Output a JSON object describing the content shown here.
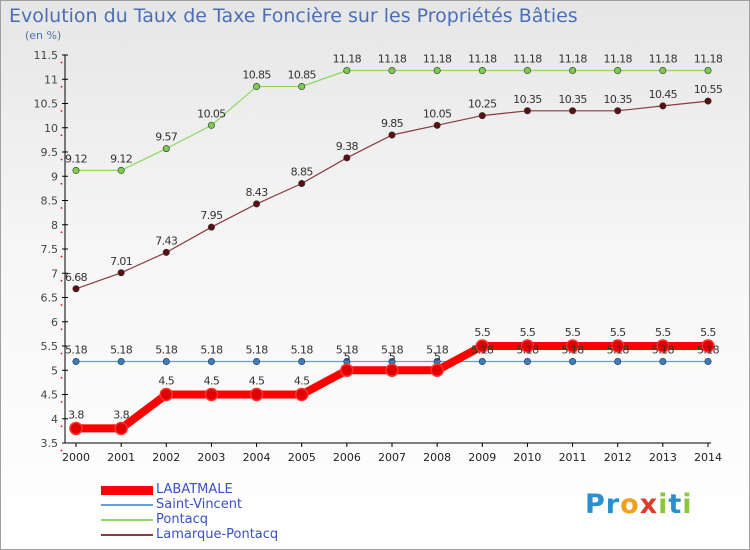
{
  "title": "Evolution du Taux de Taxe Foncière sur les Propriétés Bâties",
  "subtitle": "(en %)",
  "logo": {
    "text": "Proxiti",
    "letters": [
      "P",
      "r",
      "o",
      "x",
      "i",
      "t",
      "i"
    ],
    "colors": [
      "#2a8fd0",
      "#2a8fd0",
      "#f0a020",
      "#e03a2a",
      "#8cc63f",
      "#2a8fd0",
      "#8cc63f"
    ]
  },
  "chart_data": {
    "type": "line",
    "title": "Evolution du Taux de Taxe Foncière sur les Propriétés Bâties",
    "ylabel": "(en %)",
    "xlabel": "",
    "x": [
      "2000",
      "2001",
      "2002",
      "2003",
      "2004",
      "2005",
      "2006",
      "2007",
      "2008",
      "2009",
      "2010",
      "2011",
      "2012",
      "2013",
      "2014"
    ],
    "ylim": [
      3.5,
      11.5
    ],
    "yticks": [
      3.5,
      4,
      4.5,
      5,
      5.5,
      6,
      6.5,
      7,
      7.5,
      8,
      8.5,
      9,
      9.5,
      10,
      10.5,
      11,
      11.5
    ],
    "grid": false,
    "legend": "bottom-left",
    "series": [
      {
        "name": "LABATMALE",
        "color": "#ff0000",
        "marker": "#e00000",
        "values": [
          3.8,
          3.8,
          4.5,
          4.5,
          4.5,
          4.5,
          5,
          5,
          5,
          5.5,
          5.5,
          5.5,
          5.5,
          5.5,
          5.5
        ],
        "labels": [
          "3.8",
          "3.8",
          "4.5",
          "4.5",
          "4.5",
          "4.5",
          "5",
          "5",
          "5",
          "5.5",
          "5.5",
          "5.5",
          "5.5",
          "5.5",
          "5.5"
        ]
      },
      {
        "name": "Saint-Vincent",
        "color": "#6a9ed0",
        "marker": "#3a7ec0",
        "values": [
          5.18,
          5.18,
          5.18,
          5.18,
          5.18,
          5.18,
          5.18,
          5.18,
          5.18,
          5.18,
          5.18,
          5.18,
          5.18,
          5.18,
          5.18
        ],
        "labels": [
          "5.18",
          "5.18",
          "5.18",
          "5.18",
          "5.18",
          "5.18",
          "5.18",
          "5.18",
          "5.18",
          "5.18",
          "5.18",
          "5.18",
          "5.18",
          "5.18",
          "5.18"
        ]
      },
      {
        "name": "Pontacq",
        "color": "#8ad860",
        "marker": "#7acc4a",
        "values": [
          9.12,
          9.12,
          9.57,
          10.05,
          10.85,
          10.85,
          11.18,
          11.18,
          11.18,
          11.18,
          11.18,
          11.18,
          11.18,
          11.18,
          11.18
        ],
        "labels": [
          "9.12",
          "9.12",
          "9.57",
          "10.05",
          "10.85",
          "10.85",
          "11.18",
          "11.18",
          "11.18",
          "11.18",
          "11.18",
          "11.18",
          "11.18",
          "11.18",
          "11.18"
        ]
      },
      {
        "name": "Lamarque-Pontacq",
        "color": "#8a3a3a",
        "marker": "#5a1010",
        "values": [
          6.68,
          7.01,
          7.43,
          7.95,
          8.43,
          8.85,
          9.38,
          9.85,
          10.05,
          10.25,
          10.35,
          10.35,
          10.35,
          10.45,
          10.55
        ],
        "labels": [
          "6.68",
          "7.01",
          "7.43",
          "7.95",
          "8.43",
          "8.85",
          "9.38",
          "9.85",
          "10.05",
          "10.25",
          "10.35",
          "10.35",
          "10.35",
          "10.45",
          "10.55"
        ]
      }
    ]
  }
}
